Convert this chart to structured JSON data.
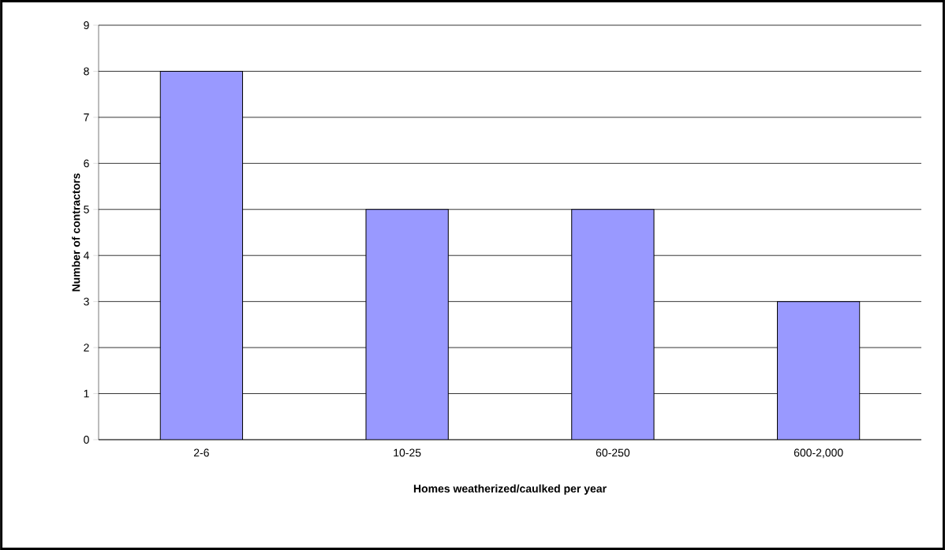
{
  "chart_data": {
    "type": "bar",
    "categories": [
      "2-6",
      "10-25",
      "60-250",
      "600-2,000"
    ],
    "values": [
      8,
      5,
      5,
      3
    ],
    "color": "#9999ff",
    "xlabel": "Homes weatherized/caulked per year",
    "ylabel": "Number of contractors",
    "ylim": [
      0,
      9
    ],
    "yticks": [
      0,
      1,
      2,
      3,
      4,
      5,
      6,
      7,
      8,
      9
    ],
    "grid": "y"
  }
}
